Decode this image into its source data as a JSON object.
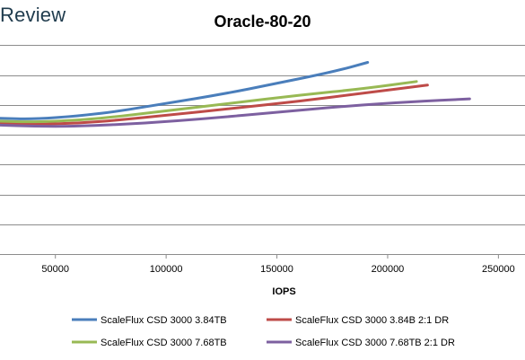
{
  "watermark": "Review",
  "chart_data": {
    "type": "line",
    "title": "Oracle-80-20",
    "xlabel": "IOPS",
    "ylabel": "",
    "xlim": [
      25000,
      262000
    ],
    "ylim": [
      0,
      8
    ],
    "x_ticks": [
      50000,
      100000,
      150000,
      200000,
      250000
    ],
    "y_ticks": [
      1,
      2,
      3,
      4,
      5,
      6,
      7
    ],
    "grid": true,
    "legend_position": "bottom",
    "series": [
      {
        "name": "ScaleFlux CSD 3000 3.84TB",
        "color": "#4a7ebb",
        "points": [
          [
            25000,
            4.55
          ],
          [
            40000,
            4.52
          ],
          [
            60000,
            4.62
          ],
          [
            80000,
            4.8
          ],
          [
            100000,
            5.05
          ],
          [
            125000,
            5.35
          ],
          [
            150000,
            5.72
          ],
          [
            175000,
            6.1
          ],
          [
            191000,
            6.42
          ]
        ]
      },
      {
        "name": "ScaleFlux CSD 3000 3.84B 2:1 DR",
        "color": "#be4b48",
        "points": [
          [
            25000,
            4.38
          ],
          [
            40000,
            4.35
          ],
          [
            60000,
            4.38
          ],
          [
            80000,
            4.5
          ],
          [
            100000,
            4.65
          ],
          [
            130000,
            4.88
          ],
          [
            160000,
            5.12
          ],
          [
            190000,
            5.4
          ],
          [
            218000,
            5.66
          ]
        ]
      },
      {
        "name": "ScaleFlux CSD 3000 7.68TB",
        "color": "#98b954",
        "points": [
          [
            25000,
            4.45
          ],
          [
            40000,
            4.42
          ],
          [
            60000,
            4.48
          ],
          [
            80000,
            4.62
          ],
          [
            100000,
            4.8
          ],
          [
            130000,
            5.06
          ],
          [
            160000,
            5.32
          ],
          [
            190000,
            5.55
          ],
          [
            213000,
            5.78
          ]
        ]
      },
      {
        "name": "ScaleFlux CSD 3000 7.68TB 2:1 DR",
        "color": "#7d60a0",
        "points": [
          [
            25000,
            4.32
          ],
          [
            40000,
            4.28
          ],
          [
            60000,
            4.28
          ],
          [
            90000,
            4.38
          ],
          [
            120000,
            4.55
          ],
          [
            150000,
            4.75
          ],
          [
            180000,
            4.95
          ],
          [
            210000,
            5.1
          ],
          [
            237000,
            5.2
          ]
        ]
      }
    ]
  }
}
